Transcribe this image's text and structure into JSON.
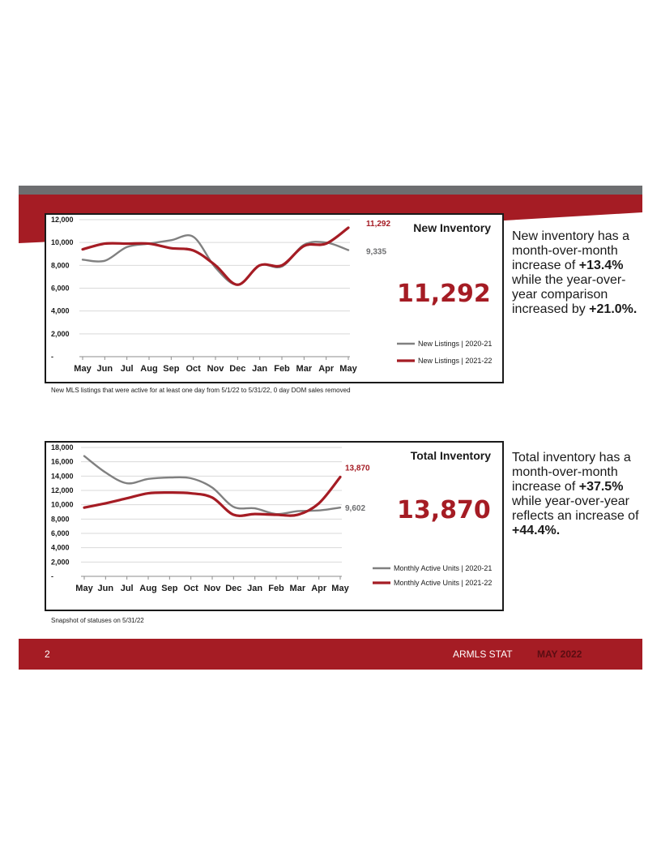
{
  "page": {
    "page_number": "2",
    "brand": "ARMLS STAT",
    "period": "MAY 2022"
  },
  "colors": {
    "brand_red": "#a51c24",
    "series_prior": "#808080",
    "series_current": "#a51c24",
    "header_gray": "#6d6e70"
  },
  "charts": [
    {
      "id": "new-inventory",
      "headline": "11,292",
      "note": "New MLS listings that were active for at least one day from 5/1/22 to 5/31/22, 0 day DOM sales removed",
      "summary": {
        "pre1": "New inventory has a month-over-month increase of ",
        "bold1": "+13.4%",
        "pre2": " while the year-over-year comparison increased by ",
        "bold2": "+21.0%."
      }
    },
    {
      "id": "total-inventory",
      "headline": "13,870",
      "note": "Snapshot of statuses on 5/31/22",
      "summary": {
        "pre1": "Total inventory has a month-over-month increase of ",
        "bold1": "+37.5%",
        "pre2": " while year-over-year reflects an increase of ",
        "bold2": "+44.4%."
      }
    }
  ],
  "chart_data": [
    {
      "type": "line",
      "title": "New Inventory",
      "categories": [
        "May",
        "Jun",
        "Jul",
        "Aug",
        "Sep",
        "Oct",
        "Nov",
        "Dec",
        "Jan",
        "Feb",
        "Mar",
        "Apr",
        "May"
      ],
      "y_ticks": [
        "-",
        "2,000",
        "4,000",
        "6,000",
        "8,000",
        "10,000",
        "12,000"
      ],
      "ylim": [
        0,
        12000
      ],
      "grid": true,
      "legend_position": "bottom-right",
      "series": [
        {
          "name": "New Listings | 2020-21",
          "color": "#808080",
          "values": [
            8500,
            8400,
            9600,
            9900,
            10200,
            10500,
            7800,
            6300,
            8000,
            7900,
            9800,
            10000,
            9335
          ],
          "end_label": "9,335"
        },
        {
          "name": "New Listings | 2021-22",
          "color": "#a51c24",
          "values": [
            9400,
            9900,
            9900,
            9900,
            9500,
            9300,
            8000,
            6300,
            8000,
            8000,
            9700,
            9900,
            11292
          ],
          "end_label": "11,292"
        }
      ]
    },
    {
      "type": "line",
      "title": "Total Inventory",
      "categories": [
        "May",
        "Jun",
        "Jul",
        "Aug",
        "Sep",
        "Oct",
        "Nov",
        "Dec",
        "Jan",
        "Feb",
        "Mar",
        "Apr",
        "May"
      ],
      "y_ticks": [
        "-",
        "2,000",
        "4,000",
        "6,000",
        "8,000",
        "10,000",
        "12,000",
        "14,000",
        "16,000",
        "18,000"
      ],
      "ylim": [
        0,
        18000
      ],
      "grid": true,
      "legend_position": "bottom-right",
      "series": [
        {
          "name": "Monthly Active Units | 2020-21",
          "color": "#808080",
          "values": [
            16800,
            14500,
            13000,
            13600,
            13800,
            13700,
            12400,
            9700,
            9500,
            8700,
            9100,
            9200,
            9602
          ],
          "end_label": "9,602"
        },
        {
          "name": "Monthly Active Units | 2021-22",
          "color": "#a51c24",
          "values": [
            9600,
            10200,
            10900,
            11600,
            11700,
            11600,
            11000,
            8600,
            8700,
            8600,
            8600,
            10200,
            13870
          ],
          "end_label": "13,870"
        }
      ]
    }
  ]
}
